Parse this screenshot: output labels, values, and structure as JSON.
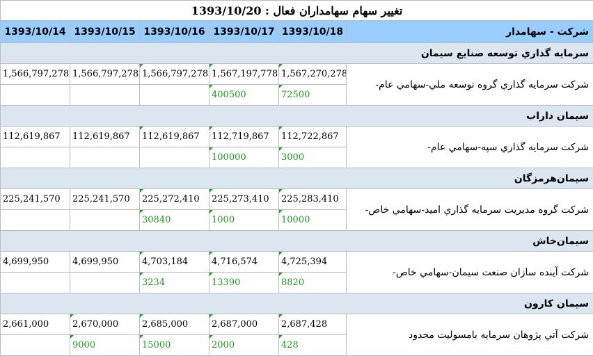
{
  "title": "تغییر سهام سهامداران فعال : 1393/10/20",
  "header": {
    "label": "شرکت - سهامدار",
    "dates": [
      "1393/10/14",
      "1393/10/15",
      "1393/10/16",
      "1393/10/17",
      "1393/10/18"
    ]
  },
  "groups": [
    {
      "company": "سرمايه گذاري توسعه صنايع سيمان",
      "holder": "شركت سرمايه گذاري گروه توسعه ملي-سهامي عام-",
      "values": [
        "1,566,797,278",
        "1,566,797,278",
        "1,566,797,278",
        "1,567,197,778",
        "1,567,270,278"
      ],
      "changes": [
        "",
        "",
        "",
        "400500",
        "72500"
      ]
    },
    {
      "company": "سيمان داراب",
      "holder": "شركت سرمايه گذاري سپه-سهامي عام-",
      "values": [
        "112,619,867",
        "112,619,867",
        "112,619,867",
        "112,719,867",
        "112,722,867"
      ],
      "changes": [
        "",
        "",
        "",
        "100000",
        "3000"
      ]
    },
    {
      "company": "سيمان‌هرمزگان",
      "holder": "شركت گروه مديريت سرمايه گذاري اميد-سهامي خاص-",
      "values": [
        "225,241,570",
        "225,241,570",
        "225,272,410",
        "225,273,410",
        "225,283,410"
      ],
      "changes": [
        "",
        "",
        "30840",
        "1000",
        "10000"
      ]
    },
    {
      "company": "سيمان‌خاش",
      "holder": "شركت آينده سازان صنعت سيمان-سهامي خاص-",
      "values": [
        "4,699,950",
        "4,699,950",
        "4,703,184",
        "4,716,574",
        "4,725,394"
      ],
      "changes": [
        "",
        "",
        "3234",
        "13390",
        "8820"
      ]
    },
    {
      "company": "سيمان كارون",
      "holder": "شركت آتي پژوهان سرمايه بامسوليت محدود",
      "values": [
        "2,661,000",
        "2,670,000",
        "2,685,000",
        "2,687,000",
        "2,687,428"
      ],
      "changes": [
        "",
        "9000",
        "15000",
        "2000",
        "428"
      ]
    }
  ]
}
